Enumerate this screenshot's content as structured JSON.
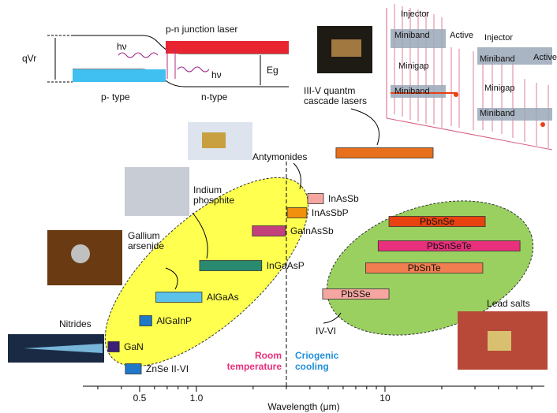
{
  "chart_data": {
    "type": "range-bar",
    "xlabel": "Wavelength (μm)",
    "xscale": "log",
    "xlim": [
      0.25,
      70
    ],
    "xticks": [
      0.5,
      {
        "value": 1,
        "label": "1.0"
      },
      10
    ],
    "minor_xticks": [
      0.3,
      0.4,
      0.6,
      0.7,
      0.8,
      0.9,
      2,
      3,
      4,
      5,
      6,
      7,
      8,
      9,
      20,
      30,
      40,
      50,
      60
    ],
    "room_temperature_limit": 3,
    "bars": [
      {
        "name": "GaN",
        "range": [
          0.34,
          0.39
        ],
        "color": "#3b1f78"
      },
      {
        "name": "ZnSe II-VI",
        "range": [
          0.42,
          0.51
        ],
        "color": "#1f78c8"
      },
      {
        "name": "AlGaInP",
        "range": [
          0.5,
          0.58
        ],
        "color": "#1f78c8"
      },
      {
        "name": "AlGaAs",
        "range": [
          0.61,
          1.07
        ],
        "color": "#5cc2ea"
      },
      {
        "name": "InGaAsP",
        "range": [
          1.04,
          2.22
        ],
        "color": "#2a8a70"
      },
      {
        "name": "GaInAsSb",
        "range": [
          1.98,
          2.97
        ],
        "color": "#c2407c"
      },
      {
        "name": "InAsSbP",
        "range": [
          3.03,
          3.85
        ],
        "color": "#f0900c"
      },
      {
        "name": "InAsSb",
        "range": [
          3.89,
          4.72
        ],
        "color": "#f6a6a0"
      },
      {
        "name": null,
        "range": [
          5.5,
          18
        ],
        "color": "#e8701c"
      },
      {
        "name": "PbSSe",
        "range": [
          4.67,
          10.5
        ],
        "color": "#f6a6a0"
      },
      {
        "name": "PbSnTe",
        "range": [
          7.9,
          33
        ],
        "color": "#f07e50"
      },
      {
        "name": "PbSnSeTe",
        "range": [
          9.2,
          52
        ],
        "color": "#e8307c"
      },
      {
        "name": "PbSnSe",
        "range": [
          10.5,
          34
        ],
        "color": "#e84210"
      }
    ],
    "annotations": {
      "nitrides": "Nitrides",
      "gallium_arsenide": [
        "Gallium",
        "arsenide"
      ],
      "indium_phosphite": [
        "Indium",
        "phosphite"
      ],
      "antimonides": "Antymonides",
      "qcl": [
        "III-V quantm",
        "cascade lasers"
      ],
      "lead_salts": "Lead salts",
      "iv_vi": "IV-VI",
      "room_temperature": [
        "Room",
        "temperature"
      ],
      "cryogenic": [
        "Criogenic",
        "cooling"
      ]
    }
  },
  "band_diagram": {
    "title": "p-n junction laser",
    "p_type": "p- type",
    "n_type": "n-type",
    "qv": "qVr",
    "eg": "Eg",
    "photon": "hν"
  },
  "cascade_diagram": {
    "injector": "Injector",
    "miniband": "Miniband",
    "minigap": "Minigap",
    "active": "Active"
  }
}
